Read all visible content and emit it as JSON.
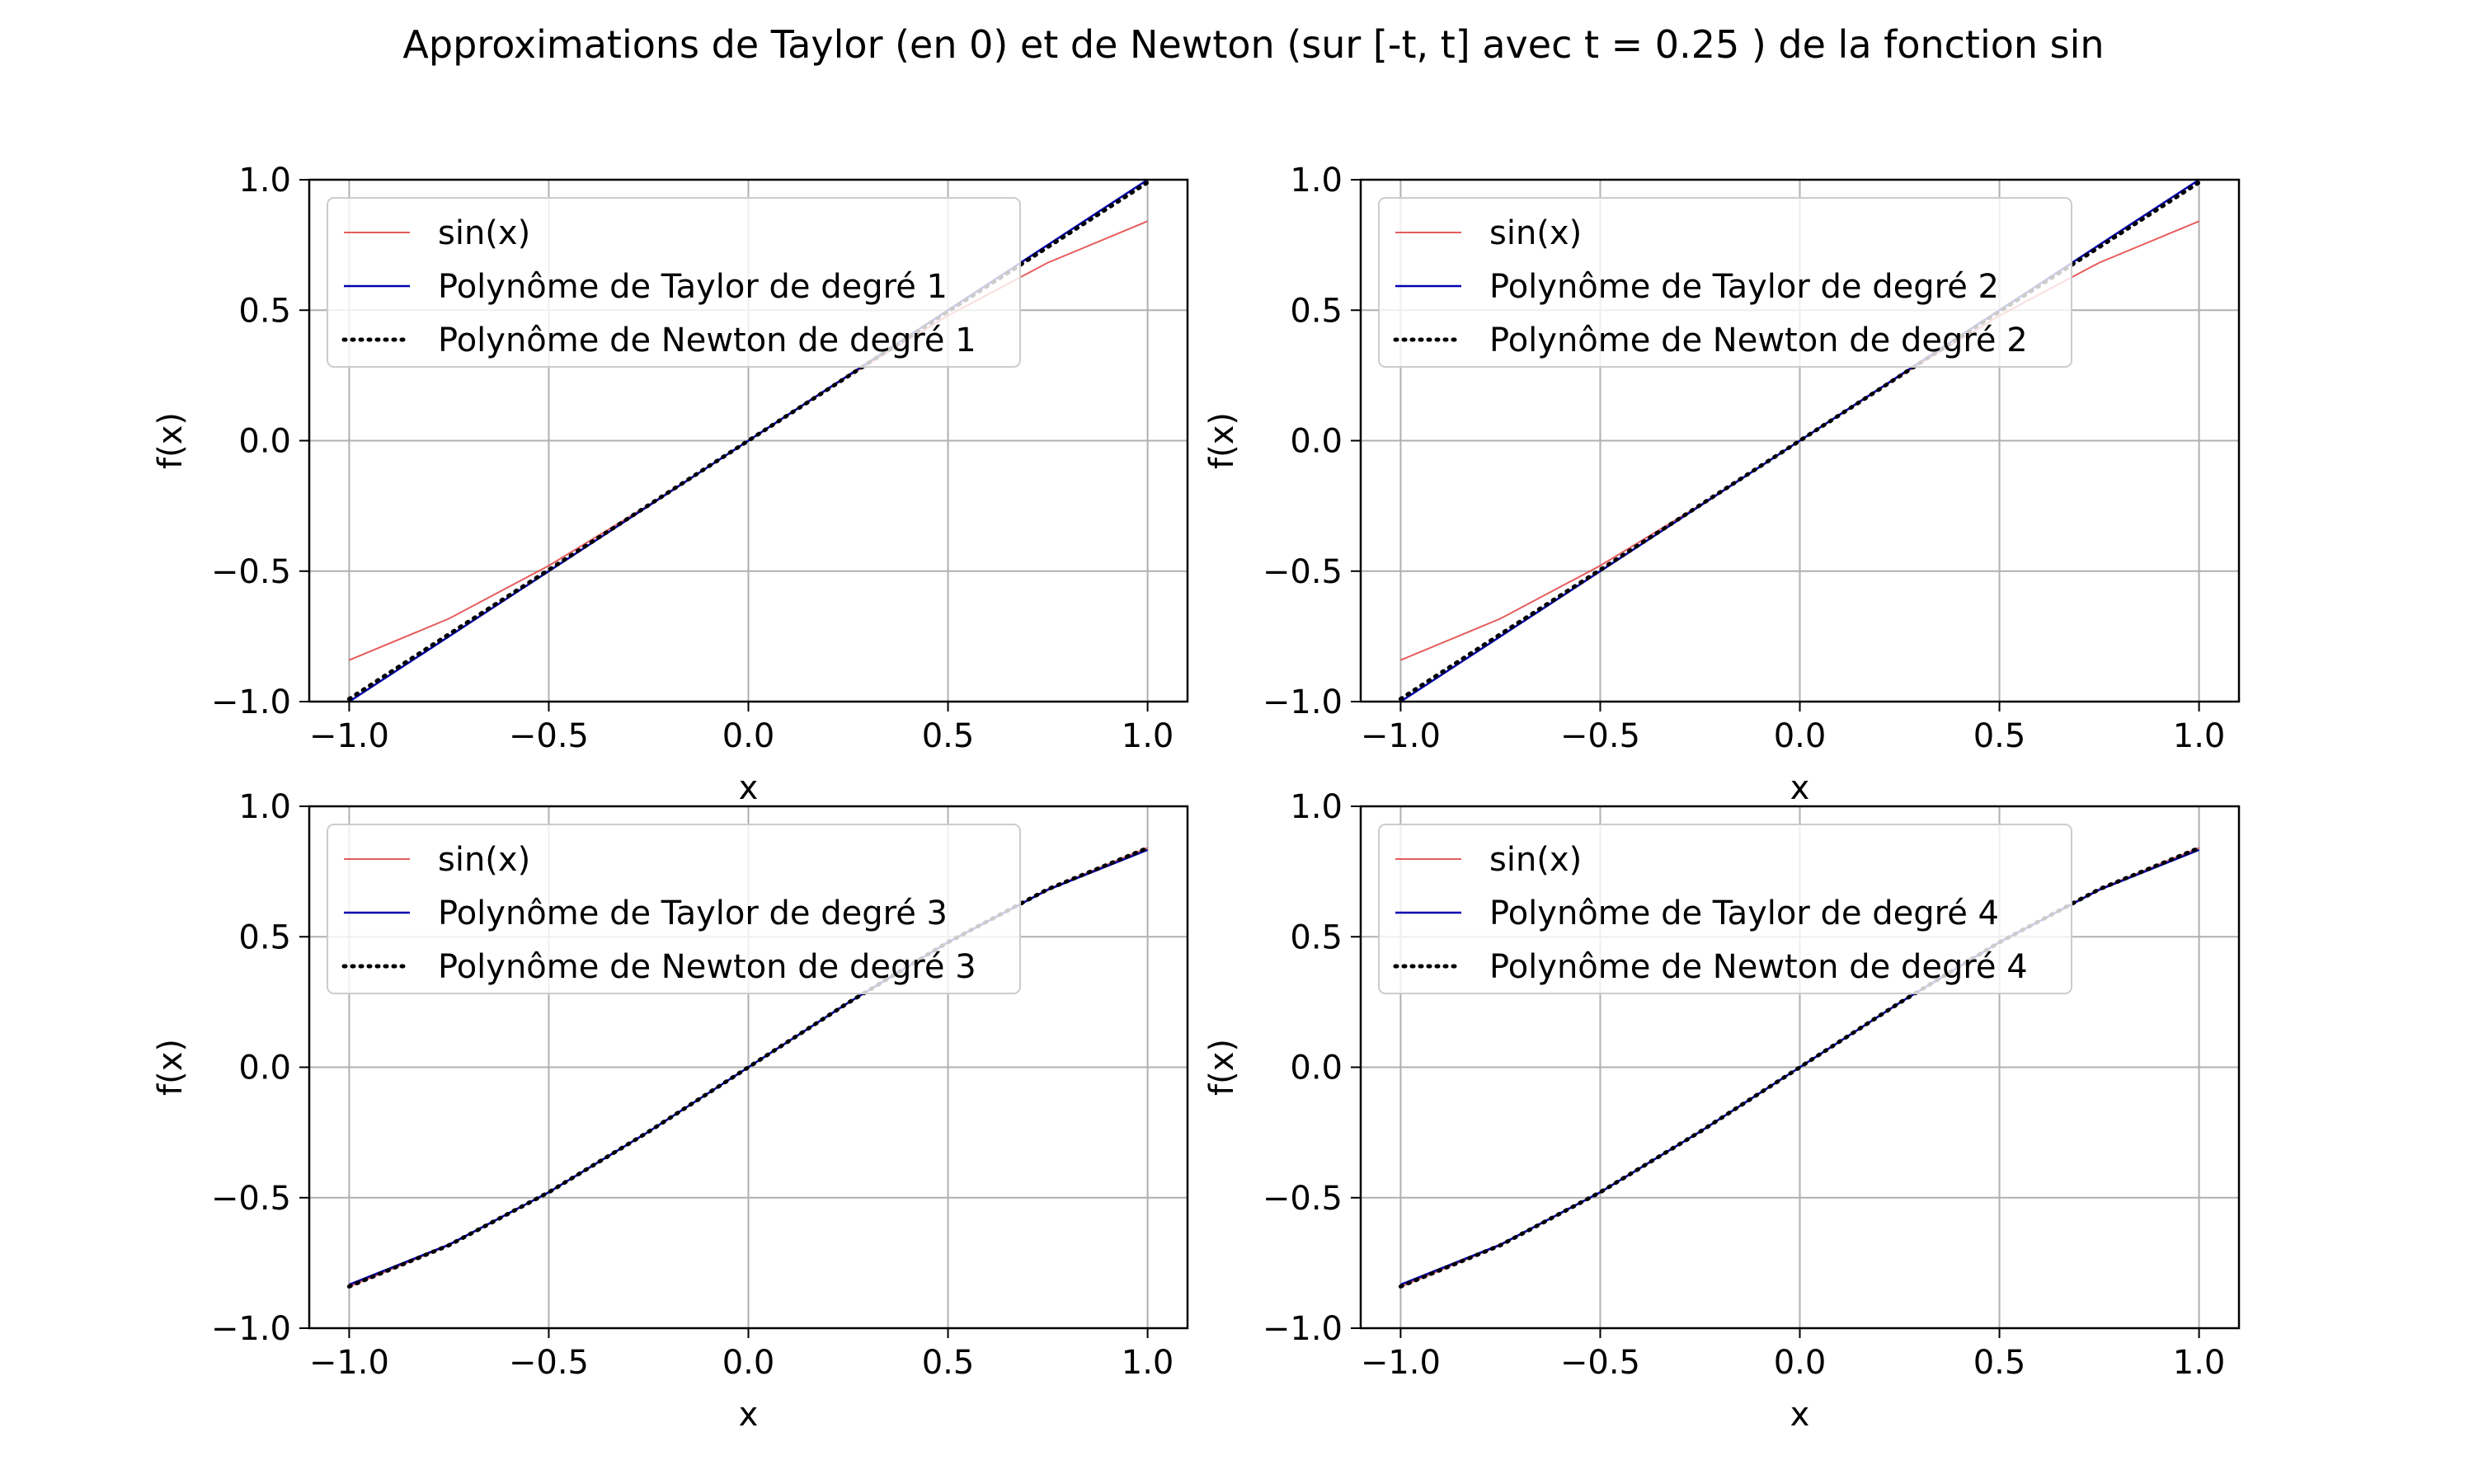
{
  "figure": {
    "title": "Approximations de Taylor (en 0) et de Newton (sur [-t, t] avec t = 0.25 ) de la fonction sin"
  },
  "colors": {
    "sin": "#e0413f",
    "taylor": "#0000b3",
    "newton": "#000000",
    "grid": "#b0b0b0",
    "axes": "#000000",
    "legend_border": "#cccccc"
  },
  "chart_data": [
    {
      "type": "line",
      "panel": "top-left",
      "xlabel": "x",
      "ylabel": "f(x)",
      "xlim": [
        -1.1,
        1.1
      ],
      "ylim": [
        -1.0,
        1.0
      ],
      "xticks": [
        "−1.0",
        "−0.5",
        "0.0",
        "0.5",
        "1.0"
      ],
      "xtick_values": [
        -1.0,
        -0.5,
        0.0,
        0.5,
        1.0
      ],
      "yticks": [
        "−1.0",
        "−0.5",
        "0.0",
        "0.5",
        "1.0"
      ],
      "ytick_values": [
        -1.0,
        -0.5,
        0.0,
        0.5,
        1.0
      ],
      "grid": true,
      "legend_position": "top-left",
      "x": [
        -1.0,
        -0.75,
        -0.5,
        -0.25,
        0.0,
        0.25,
        0.5,
        0.75,
        1.0
      ],
      "series": [
        {
          "name": "sin(x)",
          "style": "solid-thin",
          "values": [
            -0.841,
            -0.682,
            -0.479,
            -0.247,
            0.0,
            0.247,
            0.479,
            0.682,
            0.841
          ]
        },
        {
          "name": "Polynôme de Taylor de degré 1",
          "style": "solid",
          "values": [
            -1.0,
            -0.75,
            -0.5,
            -0.25,
            0.0,
            0.25,
            0.5,
            0.75,
            1.0
          ]
        },
        {
          "name": "Polynôme de Newton de degré 1",
          "style": "dotted",
          "values": [
            -0.99,
            -0.742,
            -0.495,
            -0.247,
            0.0,
            0.247,
            0.495,
            0.742,
            0.99
          ]
        }
      ]
    },
    {
      "type": "line",
      "panel": "top-right",
      "xlabel": "x",
      "ylabel": "f(x)",
      "xlim": [
        -1.1,
        1.1
      ],
      "ylim": [
        -1.0,
        1.0
      ],
      "xticks": [
        "−1.0",
        "−0.5",
        "0.0",
        "0.5",
        "1.0"
      ],
      "xtick_values": [
        -1.0,
        -0.5,
        0.0,
        0.5,
        1.0
      ],
      "yticks": [
        "−1.0",
        "−0.5",
        "0.0",
        "0.5",
        "1.0"
      ],
      "ytick_values": [
        -1.0,
        -0.5,
        0.0,
        0.5,
        1.0
      ],
      "grid": true,
      "legend_position": "top-left",
      "x": [
        -1.0,
        -0.75,
        -0.5,
        -0.25,
        0.0,
        0.25,
        0.5,
        0.75,
        1.0
      ],
      "series": [
        {
          "name": "sin(x)",
          "style": "solid-thin",
          "values": [
            -0.841,
            -0.682,
            -0.479,
            -0.247,
            0.0,
            0.247,
            0.479,
            0.682,
            0.841
          ]
        },
        {
          "name": "Polynôme de Taylor de degré 2",
          "style": "solid",
          "values": [
            -1.0,
            -0.75,
            -0.5,
            -0.25,
            0.0,
            0.25,
            0.5,
            0.75,
            1.0
          ]
        },
        {
          "name": "Polynôme de Newton de degré 2",
          "style": "dotted",
          "values": [
            -0.99,
            -0.742,
            -0.495,
            -0.247,
            0.0,
            0.247,
            0.495,
            0.742,
            0.99
          ]
        }
      ]
    },
    {
      "type": "line",
      "panel": "bottom-left",
      "xlabel": "x",
      "ylabel": "f(x)",
      "xlim": [
        -1.1,
        1.1
      ],
      "ylim": [
        -1.0,
        1.0
      ],
      "xticks": [
        "−1.0",
        "−0.5",
        "0.0",
        "0.5",
        "1.0"
      ],
      "xtick_values": [
        -1.0,
        -0.5,
        0.0,
        0.5,
        1.0
      ],
      "yticks": [
        "−1.0",
        "−0.5",
        "0.0",
        "0.5",
        "1.0"
      ],
      "ytick_values": [
        -1.0,
        -0.5,
        0.0,
        0.5,
        1.0
      ],
      "grid": true,
      "legend_position": "top-left",
      "x": [
        -1.0,
        -0.75,
        -0.5,
        -0.25,
        0.0,
        0.25,
        0.5,
        0.75,
        1.0
      ],
      "series": [
        {
          "name": "sin(x)",
          "style": "solid-thin",
          "values": [
            -0.841,
            -0.682,
            -0.479,
            -0.247,
            0.0,
            0.247,
            0.479,
            0.682,
            0.841
          ]
        },
        {
          "name": "Polynôme de Taylor de degré 3",
          "style": "solid",
          "values": [
            -0.833,
            -0.68,
            -0.479,
            -0.247,
            0.0,
            0.247,
            0.479,
            0.68,
            0.833
          ]
        },
        {
          "name": "Polynôme de Newton de degré 3",
          "style": "dotted",
          "values": [
            -0.84,
            -0.682,
            -0.479,
            -0.247,
            0.0,
            0.247,
            0.479,
            0.682,
            0.84
          ]
        }
      ]
    },
    {
      "type": "line",
      "panel": "bottom-right",
      "xlabel": "x",
      "ylabel": "f(x)",
      "xlim": [
        -1.1,
        1.1
      ],
      "ylim": [
        -1.0,
        1.0
      ],
      "xticks": [
        "−1.0",
        "−0.5",
        "0.0",
        "0.5",
        "1.0"
      ],
      "xtick_values": [
        -1.0,
        -0.5,
        0.0,
        0.5,
        1.0
      ],
      "yticks": [
        "−1.0",
        "−0.5",
        "0.0",
        "0.5",
        "1.0"
      ],
      "ytick_values": [
        -1.0,
        -0.5,
        0.0,
        0.5,
        1.0
      ],
      "grid": true,
      "legend_position": "top-left",
      "x": [
        -1.0,
        -0.75,
        -0.5,
        -0.25,
        0.0,
        0.25,
        0.5,
        0.75,
        1.0
      ],
      "series": [
        {
          "name": "sin(x)",
          "style": "solid-thin",
          "values": [
            -0.841,
            -0.682,
            -0.479,
            -0.247,
            0.0,
            0.247,
            0.479,
            0.682,
            0.841
          ]
        },
        {
          "name": "Polynôme de Taylor de degré 4",
          "style": "solid",
          "values": [
            -0.833,
            -0.68,
            -0.479,
            -0.247,
            0.0,
            0.247,
            0.479,
            0.68,
            0.833
          ]
        },
        {
          "name": "Polynôme de Newton de degré 4",
          "style": "dotted",
          "values": [
            -0.84,
            -0.682,
            -0.479,
            -0.247,
            0.0,
            0.247,
            0.479,
            0.682,
            0.84
          ]
        }
      ]
    }
  ]
}
